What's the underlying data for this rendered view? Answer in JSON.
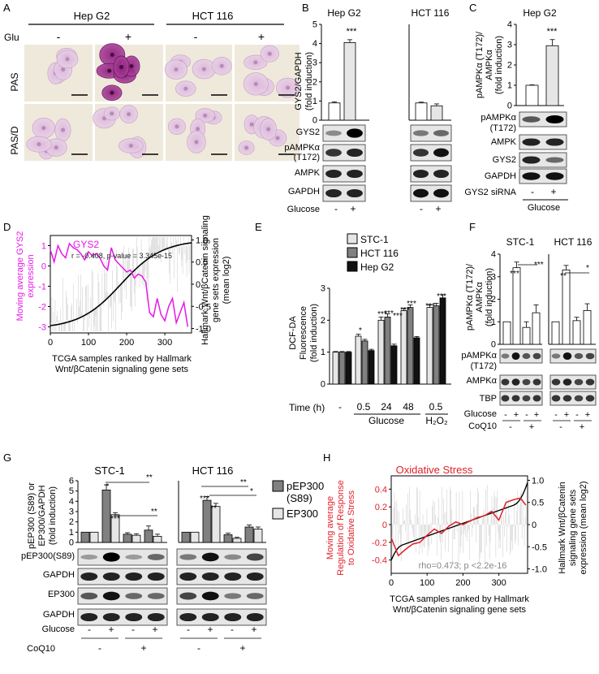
{
  "panels": {
    "A": {
      "letter": "A",
      "groups": [
        "Hep G2",
        "HCT 116"
      ],
      "glu_label": "Glu",
      "signs": [
        "-",
        "+",
        "-",
        "+"
      ],
      "rows": [
        "PAS",
        "PAS/D"
      ]
    },
    "B": {
      "letter": "B",
      "groups": [
        "Hep G2",
        "HCT 116"
      ],
      "ylabel": [
        "GYS2/GAPDH",
        "(fold induction)"
      ],
      "yticks": [
        0,
        1,
        2,
        3,
        4,
        5
      ],
      "sig": "***",
      "blots": [
        "GYS2",
        "pAMPKα",
        "(T172)",
        "AMPK",
        "GAPDH"
      ],
      "treatment": "Glucose",
      "signs": [
        "-",
        "+",
        "-",
        "+"
      ]
    },
    "C": {
      "letter": "C",
      "group": "Hep G2",
      "ylabel": [
        "pAMPKα (T172)/",
        "AMPKα",
        "(fold induction)"
      ],
      "yticks": [
        0,
        1,
        2,
        3,
        4
      ],
      "sig": "***",
      "blots": [
        "pAMPKα",
        "(T172)",
        "AMPK",
        "GYS2",
        "GAPDH"
      ],
      "sirna_label": "GYS2 siRNA",
      "signs": [
        "-",
        "+"
      ],
      "treatment": "Glucose"
    },
    "D": {
      "letter": "D",
      "series_label": "GYS2",
      "annotation": "r = -0.408, p-value = 3.345e-15",
      "ylabel_left": [
        "Moving average GYS2",
        "expression"
      ],
      "ylabel_right": [
        "Hallmark Wnt/βCatenin signaling",
        "gene sets expression",
        "(mean log2)"
      ],
      "xlabel": [
        "TCGA samples ranked by Hallmark",
        "Wnt/βCatenin signaling gene sets"
      ],
      "xticks": [
        0,
        100,
        200,
        300
      ],
      "yticks_left": [
        1,
        0,
        -1,
        -2,
        -3
      ],
      "yticks_right": [
        "1.0",
        "0.5",
        "0",
        "-0.5",
        "-1.0"
      ]
    },
    "E": {
      "letter": "E",
      "legend": [
        "STC-1",
        "HCT 116",
        "Hep G2"
      ],
      "ylabel": [
        "DCF-DA",
        "Fluorescence",
        "(fold induction)"
      ],
      "yticks": [
        0,
        1,
        2,
        3
      ],
      "time_label": "Time (h)",
      "groups": [
        "-",
        "0.5",
        "24",
        "48",
        "0.5"
      ],
      "treatments": [
        "Glucose",
        "H₂O₂"
      ],
      "sig": [
        "*",
        "***",
        "***",
        "***",
        "***",
        "***",
        "***",
        "***"
      ]
    },
    "F": {
      "letter": "F",
      "groups": [
        "STC-1",
        "HCT 116"
      ],
      "ylabel": [
        "pAMPKα (T172)/",
        "AMPKα",
        "(fold induction)"
      ],
      "yticks": [
        0,
        1,
        2,
        3,
        4
      ],
      "sig": [
        "***",
        "***",
        "**",
        "*"
      ],
      "blots": [
        "pAMPKα",
        "(T172)",
        "AMPKα",
        "TBP"
      ],
      "treat1": "Glucose",
      "treat2": "CoQ10",
      "glucose_signs": [
        "-",
        "+",
        "-",
        "+",
        "-",
        "+",
        "-",
        "+"
      ],
      "coq_signs": [
        "-",
        "+",
        "-",
        "+"
      ]
    },
    "G": {
      "letter": "G",
      "groups": [
        "STC-1",
        "HCT 116"
      ],
      "ylabel": [
        "pEP300 (S89) or",
        "EP300/GAPDH",
        "(fold induction)"
      ],
      "yticks": [
        0,
        1,
        2,
        3,
        4,
        5,
        6
      ],
      "legend": [
        "pEP300",
        "(S89)",
        "EP300"
      ],
      "sig": [
        "*",
        "***",
        "**",
        "**",
        "***",
        "**",
        "**",
        "*"
      ],
      "blots": [
        "pEP300(S89)",
        "GAPDH",
        "EP300",
        "GAPDH"
      ],
      "treat1": "Glucose",
      "treat2": "CoQ10",
      "glucose_signs": [
        "-",
        "+",
        "-",
        "+",
        "-",
        "+",
        "-",
        "+"
      ],
      "coq_signs": [
        "-",
        "+",
        "-",
        "+"
      ]
    },
    "H": {
      "letter": "H",
      "title": "Oxidative Stress",
      "annotation": "rho=0.473; p <2.2e-16",
      "ylabel_left": [
        "Moving average",
        "Regulation of Response",
        "to Oxidative Stress"
      ],
      "ylabel_right": [
        "Hallmark Wnt/βCatenin",
        "signaling gene sets",
        "expression (mean log2)"
      ],
      "xlabel": [
        "TCGA samples ranked by Hallmark",
        "Wnt/βCatenin signaling gene sets"
      ],
      "xticks": [
        0,
        100,
        200,
        300
      ],
      "yticks_left": [
        "0.4",
        "0.2",
        "0",
        "-0.2",
        "-0.4"
      ],
      "yticks_right": [
        "1.0",
        "0.5",
        "0",
        "-0.5",
        "-1.0"
      ]
    }
  },
  "colors": {
    "magenta": "#e619e6",
    "red": "#e0202a",
    "gray_light": "#e6e6e6",
    "gray_dark": "#808080",
    "black": "#111111"
  },
  "chart_data": [
    {
      "panel": "B",
      "type": "bar",
      "categories": [
        "Hep G2 -",
        "Hep G2 +",
        "HCT 116 -",
        "HCT 116 +"
      ],
      "values": [
        0.9,
        4.05,
        0.9,
        0.75
      ],
      "errors": [
        0.05,
        0.15,
        0.04,
        0.1
      ],
      "ylim": [
        0,
        5
      ]
    },
    {
      "panel": "C",
      "type": "bar",
      "categories": [
        "-",
        "+"
      ],
      "values": [
        1.0,
        2.95
      ],
      "errors": [
        0.02,
        0.3
      ],
      "ylim": [
        0,
        4
      ]
    },
    {
      "panel": "D",
      "type": "line",
      "x_range": [
        0,
        370
      ],
      "series": [
        {
          "name": "GYS2",
          "x": [
            0,
            10,
            20,
            30,
            40,
            50,
            60,
            70,
            80,
            90,
            100,
            110,
            120,
            130,
            140,
            150,
            160,
            170,
            180,
            190,
            200,
            210,
            220,
            230,
            240,
            250,
            260,
            270,
            280,
            290,
            300,
            310,
            320,
            330,
            340,
            350,
            360
          ],
          "y": [
            0.8,
            0.2,
            1.0,
            0.6,
            0.4,
            1.1,
            0.9,
            0.8,
            0.6,
            0.3,
            0.7,
            0.5,
            0.6,
            0.4,
            0.0,
            -0.2,
            0.9,
            0.3,
            0.1,
            -0.1,
            -0.3,
            -0.2,
            -0.6,
            -0.4,
            -0.5,
            -0.8,
            -2.3,
            -2.5,
            -1.6,
            -2.4,
            -2.7,
            -2.0,
            -1.6,
            -2.8,
            -2.3,
            -1.8,
            -3.0
          ]
        }
      ],
      "ylim_left": [
        -3.3,
        1.5
      ],
      "ylim_right": [
        -1.1,
        1.1
      ]
    },
    {
      "panel": "E",
      "type": "bar",
      "categories": [
        "-",
        "0.5",
        "24",
        "48",
        "0.5 H2O2"
      ],
      "series": [
        {
          "name": "STC-1",
          "values": [
            1.0,
            1.5,
            2.0,
            2.3,
            2.4
          ],
          "errors": [
            0.02,
            0.06,
            0.1,
            0.08,
            0.08
          ]
        },
        {
          "name": "HCT 116",
          "values": [
            1.0,
            1.35,
            2.1,
            2.4,
            2.45
          ],
          "errors": [
            0.02,
            0.05,
            0.1,
            0.08,
            0.08
          ]
        },
        {
          "name": "Hep G2",
          "values": [
            1.0,
            1.05,
            1.2,
            1.45,
            2.7
          ],
          "errors": [
            0.02,
            0.04,
            0.05,
            0.04,
            0.1
          ]
        }
      ],
      "ylim": [
        0,
        3
      ]
    },
    {
      "panel": "F",
      "type": "bar",
      "categories": [
        "STC-1 1",
        "STC-1 2",
        "STC-1 3",
        "STC-1 4",
        "HCT 116 1",
        "HCT 116 2",
        "HCT 116 3",
        "HCT 116 4"
      ],
      "values": [
        1.0,
        3.4,
        0.75,
        1.4,
        1.0,
        3.3,
        1.05,
        1.5
      ],
      "errors": [
        0.0,
        0.25,
        0.25,
        0.35,
        0.0,
        0.2,
        0.15,
        0.3
      ],
      "ylim": [
        0,
        4
      ]
    },
    {
      "panel": "G",
      "type": "bar",
      "categories": [
        "STC-1 1",
        "STC-1 2",
        "STC-1 3",
        "STC-1 4",
        "HCT 116 1",
        "HCT 116 2",
        "HCT 116 3",
        "HCT 116 4"
      ],
      "series": [
        {
          "name": "pEP300 (S89)",
          "values": [
            1.0,
            5.1,
            0.8,
            1.2,
            1.0,
            4.1,
            0.75,
            1.5
          ],
          "errors": [
            0.0,
            0.5,
            0.15,
            0.4,
            0.0,
            0.35,
            0.15,
            0.2
          ]
        },
        {
          "name": "EP300",
          "values": [
            1.0,
            2.7,
            0.7,
            0.6,
            1.0,
            3.5,
            0.4,
            1.3
          ],
          "errors": [
            0.0,
            0.2,
            0.15,
            0.2,
            0.0,
            0.3,
            0.1,
            0.2
          ]
        }
      ],
      "ylim": [
        0,
        6
      ]
    },
    {
      "panel": "H",
      "type": "line",
      "x_range": [
        0,
        380
      ],
      "series": [
        {
          "name": "",
          "x": [
            0,
            20,
            40,
            60,
            80,
            100,
            120,
            140,
            160,
            180,
            200,
            220,
            240,
            260,
            280,
            300,
            320,
            340,
            360,
            375
          ],
          "y": [
            -0.15,
            -0.35,
            -0.28,
            -0.22,
            -0.2,
            -0.12,
            -0.05,
            -0.1,
            -0.02,
            0.03,
            0.0,
            0.04,
            0.08,
            0.1,
            0.15,
            0.05,
            0.25,
            0.28,
            0.3,
            0.22
          ]
        }
      ],
      "ylim_left": [
        -0.55,
        0.55
      ],
      "ylim_right": [
        -1.1,
        1.1
      ]
    }
  ]
}
